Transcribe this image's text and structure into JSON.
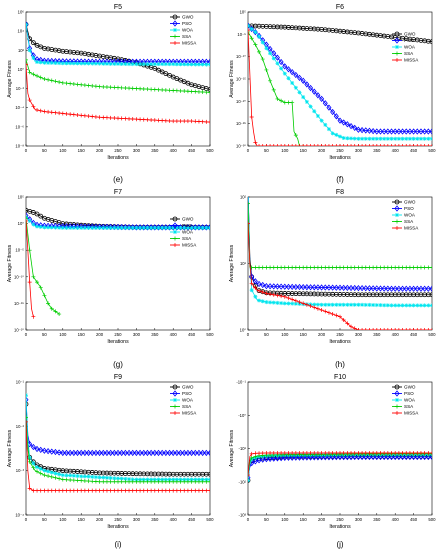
{
  "chart_data": [
    {
      "type": "line",
      "title": "F5",
      "caption": "(e)",
      "xlabel": "Iterations",
      "ylabel": "Average Fitness",
      "xlim": [
        0,
        500
      ],
      "ylog": true,
      "ylim_exp": [
        -8,
        6
      ],
      "yticks": [
        "10⁶",
        "10⁴",
        "10²",
        "10⁰",
        "10⁻²",
        "10⁻⁴",
        "10⁻⁶",
        "10⁻⁸"
      ],
      "legend": "top-right",
      "series": [
        {
          "name": "GWO",
          "x": [
            0,
            10,
            25,
            50,
            100,
            150,
            200,
            250,
            300,
            350,
            400,
            450,
            500
          ],
          "y": [
            4.7,
            3.2,
            2.6,
            2.2,
            1.9,
            1.7,
            1.4,
            1.1,
            0.7,
            0.1,
            -0.8,
            -1.6,
            -2.1
          ]
        },
        {
          "name": "PSO",
          "x": [
            0,
            10,
            25,
            50,
            100,
            200,
            300,
            400,
            500
          ],
          "y": [
            4.7,
            2.2,
            1.1,
            0.9,
            0.85,
            0.8,
            0.8,
            0.8,
            0.8
          ]
        },
        {
          "name": "WOA",
          "x": [
            0,
            10,
            25,
            50,
            100,
            200,
            300,
            400,
            500
          ],
          "y": [
            4.7,
            2.0,
            0.8,
            0.7,
            0.65,
            0.6,
            0.55,
            0.55,
            0.5
          ]
        },
        {
          "name": "SSA",
          "x": [
            0,
            10,
            25,
            50,
            100,
            150,
            200,
            250,
            300,
            350,
            400,
            450,
            500
          ],
          "y": [
            1.0,
            -0.3,
            -0.6,
            -1.0,
            -1.4,
            -1.6,
            -1.8,
            -1.9,
            -2.0,
            -2.1,
            -2.2,
            -2.3,
            -2.4
          ]
        },
        {
          "name": "MISSA",
          "x": [
            0,
            5,
            10,
            25,
            50,
            100,
            150,
            200,
            250,
            300,
            350,
            400,
            450,
            500
          ],
          "y": [
            0.5,
            -2.5,
            -3.2,
            -4.2,
            -4.4,
            -4.6,
            -4.8,
            -5.0,
            -5.1,
            -5.2,
            -5.3,
            -5.4,
            -5.4,
            -5.5
          ]
        }
      ]
    },
    {
      "type": "line",
      "title": "F6",
      "caption": "(f)",
      "xlabel": "Iterations",
      "ylabel": "Average Fitness",
      "xlim": [
        0,
        500
      ],
      "ylog": true,
      "ylim_exp": [
        -32,
        5
      ],
      "yticks": [
        "10⁵",
        "10⁻⁵",
        "10⁻¹⁰",
        "10⁻¹⁵",
        "10⁻²⁰",
        "10⁻²⁵",
        "10⁻³⁰"
      ],
      "legend": "right",
      "series": [
        {
          "name": "GWO",
          "x": [
            0,
            50,
            100,
            150,
            200,
            250,
            300,
            350,
            400,
            450,
            500
          ],
          "y": [
            1.2,
            1.0,
            0.8,
            0.5,
            0.2,
            -0.3,
            -0.8,
            -1.4,
            -2.0,
            -2.6,
            -3.2
          ]
        },
        {
          "name": "PSO",
          "x": [
            0,
            25,
            50,
            100,
            150,
            200,
            250,
            300,
            350,
            400,
            450,
            500
          ],
          "y": [
            1.2,
            -1.0,
            -4.0,
            -10.0,
            -14.0,
            -19.0,
            -25.0,
            -27.5,
            -28.0,
            -28.0,
            -28.0,
            -28.0
          ]
        },
        {
          "name": "WOA",
          "x": [
            0,
            25,
            50,
            100,
            150,
            200,
            230,
            260,
            300,
            400,
            500
          ],
          "y": [
            1.2,
            -1.0,
            -5.0,
            -12.0,
            -18.5,
            -25.0,
            -28.5,
            -29.8,
            -30.0,
            -30.0,
            -30.0
          ]
        },
        {
          "name": "SSA",
          "x": [
            0,
            20,
            40,
            60,
            80,
            100,
            120,
            125,
            130,
            135,
            140,
            150
          ],
          "y": [
            -0.5,
            -4.0,
            -8.0,
            -14.0,
            -19.0,
            -20.0,
            -20.0,
            -28.0,
            -29.0,
            -30.0,
            -32.0,
            -32.0
          ]
        },
        {
          "name": "MISSA",
          "x": [
            0,
            5,
            10,
            15,
            20,
            25,
            30,
            500
          ],
          "y": [
            0.0,
            -12.0,
            -24.0,
            -28.0,
            -31.0,
            -32.0,
            -32.0,
            -32.0
          ]
        }
      ]
    },
    {
      "type": "line",
      "title": "F7",
      "caption": "(g)",
      "xlabel": "Iterations",
      "ylabel": "Average Fitness",
      "xlim": [
        0,
        500
      ],
      "ylog": true,
      "ylim_exp": [
        -20,
        5
      ],
      "yticks": [
        "10⁵",
        "10⁰",
        "10⁻⁵",
        "10⁻¹⁰",
        "10⁻¹⁵",
        "10⁻²⁰"
      ],
      "legend": "right",
      "series": [
        {
          "name": "GWO",
          "x": [
            0,
            25,
            50,
            100,
            150,
            200,
            250,
            300,
            400,
            500
          ],
          "y": [
            2.5,
            2.0,
            1.0,
            0.0,
            -0.3,
            -0.5,
            -0.6,
            -0.7,
            -0.7,
            -0.7
          ]
        },
        {
          "name": "PSO",
          "x": [
            0,
            25,
            50,
            100,
            200,
            300,
            400,
            500
          ],
          "y": [
            1.5,
            -0.2,
            -0.4,
            -0.5,
            -0.6,
            -0.7,
            -0.7,
            -0.7
          ]
        },
        {
          "name": "WOA",
          "x": [
            0,
            25,
            50,
            100,
            200,
            300,
            400,
            500
          ],
          "y": [
            1.2,
            -0.5,
            -0.7,
            -0.8,
            -0.8,
            -0.8,
            -0.8,
            -0.8
          ]
        },
        {
          "name": "SSA",
          "x": [
            0,
            10,
            20,
            40,
            60,
            70,
            80,
            90
          ],
          "y": [
            1.0,
            -5.0,
            -10.0,
            -12.0,
            -15.0,
            -16.0,
            -16.5,
            -17.0
          ]
        },
        {
          "name": "MISSA",
          "x": [
            0,
            5,
            10,
            15,
            20
          ],
          "y": [
            0.5,
            -5.0,
            -11.0,
            -16.0,
            -17.5
          ]
        }
      ]
    },
    {
      "type": "line",
      "title": "F8",
      "caption": "(h)",
      "xlabel": "Iterations",
      "ylabel": "Average Fitness",
      "xlim": [
        0,
        500
      ],
      "ylog": true,
      "ylim_exp": [
        0,
        2
      ],
      "yticks": [
        "10²",
        "10¹",
        "10⁰"
      ],
      "legend": "top-right",
      "series": [
        {
          "name": "GWO",
          "x": [
            0,
            5,
            10,
            25,
            50,
            100,
            200,
            300,
            400,
            500
          ],
          "y": [
            2.1,
            1.1,
            0.8,
            0.6,
            0.56,
            0.55,
            0.54,
            0.53,
            0.53,
            0.53
          ]
        },
        {
          "name": "PSO",
          "x": [
            0,
            5,
            10,
            25,
            50,
            100,
            200,
            300,
            400,
            500
          ],
          "y": [
            2.2,
            1.0,
            0.8,
            0.7,
            0.66,
            0.65,
            0.64,
            0.63,
            0.62,
            0.62
          ]
        },
        {
          "name": "WOA",
          "x": [
            0,
            5,
            10,
            25,
            50,
            100,
            200,
            300,
            400,
            500
          ],
          "y": [
            2.1,
            1.0,
            0.6,
            0.45,
            0.42,
            0.4,
            0.38,
            0.38,
            0.37,
            0.37
          ]
        },
        {
          "name": "SSA",
          "x": [
            0,
            5,
            10,
            50,
            100,
            200,
            300,
            400,
            500
          ],
          "y": [
            1.9,
            0.95,
            0.94,
            0.94,
            0.94,
            0.94,
            0.94,
            0.94,
            0.94
          ]
        },
        {
          "name": "MISSA",
          "x": [
            0,
            5,
            10,
            25,
            50,
            100,
            150,
            200,
            250,
            280,
            300,
            400,
            500
          ],
          "y": [
            1.6,
            1.0,
            0.7,
            0.6,
            0.55,
            0.5,
            0.4,
            0.3,
            0.2,
            0.05,
            0.0,
            0.0,
            0.0
          ]
        }
      ]
    },
    {
      "type": "line",
      "title": "F9",
      "caption": "(i)",
      "xlabel": "Iterations",
      "ylabel": "Average Fitness",
      "xlim": [
        0,
        500
      ],
      "ylog": true,
      "ylim_exp": [
        -4,
        -1
      ],
      "yticks": [
        "10⁻¹",
        "10⁻²",
        "10⁻³",
        "10⁻⁴"
      ],
      "legend": "top-right",
      "series": [
        {
          "name": "GWO",
          "x": [
            0,
            5,
            10,
            25,
            50,
            100,
            200,
            300,
            400,
            500
          ],
          "y": [
            -1.5,
            -2.4,
            -2.7,
            -2.85,
            -2.95,
            -3.0,
            -3.05,
            -3.07,
            -3.08,
            -3.08
          ]
        },
        {
          "name": "PSO",
          "x": [
            0,
            5,
            10,
            25,
            50,
            100,
            200,
            300,
            400,
            500
          ],
          "y": [
            -1.4,
            -2.2,
            -2.4,
            -2.5,
            -2.55,
            -2.6,
            -2.6,
            -2.6,
            -2.6,
            -2.6
          ]
        },
        {
          "name": "WOA",
          "x": [
            0,
            5,
            10,
            25,
            50,
            100,
            200,
            300,
            400,
            500
          ],
          "y": [
            -1.3,
            -2.3,
            -2.7,
            -2.9,
            -3.0,
            -3.1,
            -3.15,
            -3.2,
            -3.2,
            -3.2
          ]
        },
        {
          "name": "SSA",
          "x": [
            0,
            5,
            10,
            25,
            50,
            100,
            200,
            300,
            400,
            500
          ],
          "y": [
            -1.8,
            -2.5,
            -2.8,
            -3.0,
            -3.1,
            -3.2,
            -3.25,
            -3.25,
            -3.25,
            -3.25
          ]
        },
        {
          "name": "MISSA",
          "x": [
            0,
            5,
            10,
            20,
            50,
            100,
            200,
            300,
            400,
            500
          ],
          "y": [
            -1.9,
            -3.0,
            -3.4,
            -3.45,
            -3.45,
            -3.45,
            -3.45,
            -3.45,
            -3.45,
            -3.45
          ]
        }
      ]
    },
    {
      "type": "line",
      "title": "F10",
      "caption": "(j)",
      "xlabel": "Iterations",
      "ylabel": "Average Fitness",
      "xlim": [
        0,
        500
      ],
      "ylog": true,
      "ylim_exp": [
        -1,
        4
      ],
      "yticks": [
        "-10⁻¹",
        "-10⁰",
        "-10¹",
        "-10²",
        "-10³"
      ],
      "legend": "top-right",
      "series": [
        {
          "name": "GWO",
          "x": [
            0,
            5,
            10,
            25,
            50,
            100,
            200,
            300,
            400,
            500
          ],
          "y": [
            0.3,
            0.9,
            1.05,
            1.12,
            1.15,
            1.18,
            1.2,
            1.2,
            1.2,
            1.2
          ]
        },
        {
          "name": "PSO",
          "x": [
            0,
            5,
            10,
            25,
            50,
            100,
            200,
            300,
            400,
            500
          ],
          "y": [
            0.4,
            0.8,
            0.95,
            1.05,
            1.1,
            1.15,
            1.17,
            1.18,
            1.18,
            1.18
          ]
        },
        {
          "name": "WOA",
          "x": [
            0,
            5,
            10,
            25,
            50,
            100,
            200,
            300,
            400,
            500
          ],
          "y": [
            0.3,
            0.9,
            1.1,
            1.18,
            1.22,
            1.25,
            1.26,
            1.27,
            1.27,
            1.27
          ]
        },
        {
          "name": "SSA",
          "x": [
            0,
            5,
            10,
            25,
            50,
            100,
            200,
            300,
            400,
            500
          ],
          "y": [
            0.5,
            1.0,
            1.15,
            1.22,
            1.25,
            1.27,
            1.28,
            1.29,
            1.3,
            1.3
          ]
        },
        {
          "name": "MISSA",
          "x": [
            0,
            5,
            10,
            20,
            50,
            100,
            200,
            300,
            400,
            500
          ],
          "y": [
            0.5,
            1.2,
            1.3,
            1.32,
            1.33,
            1.33,
            1.33,
            1.33,
            1.33,
            1.33
          ]
        }
      ]
    }
  ],
  "series_styles": {
    "GWO": {
      "color": "#000000",
      "marker": "circle"
    },
    "PSO": {
      "color": "#0000ff",
      "marker": "diamond"
    },
    "WOA": {
      "color": "#00e5ee",
      "marker": "star"
    },
    "SSA": {
      "color": "#00cc00",
      "marker": "plus"
    },
    "MISSA": {
      "color": "#ff0000",
      "marker": "plus"
    }
  },
  "xticks": [
    "0",
    "50",
    "100",
    "150",
    "200",
    "250",
    "300",
    "350",
    "400",
    "450",
    "500"
  ]
}
